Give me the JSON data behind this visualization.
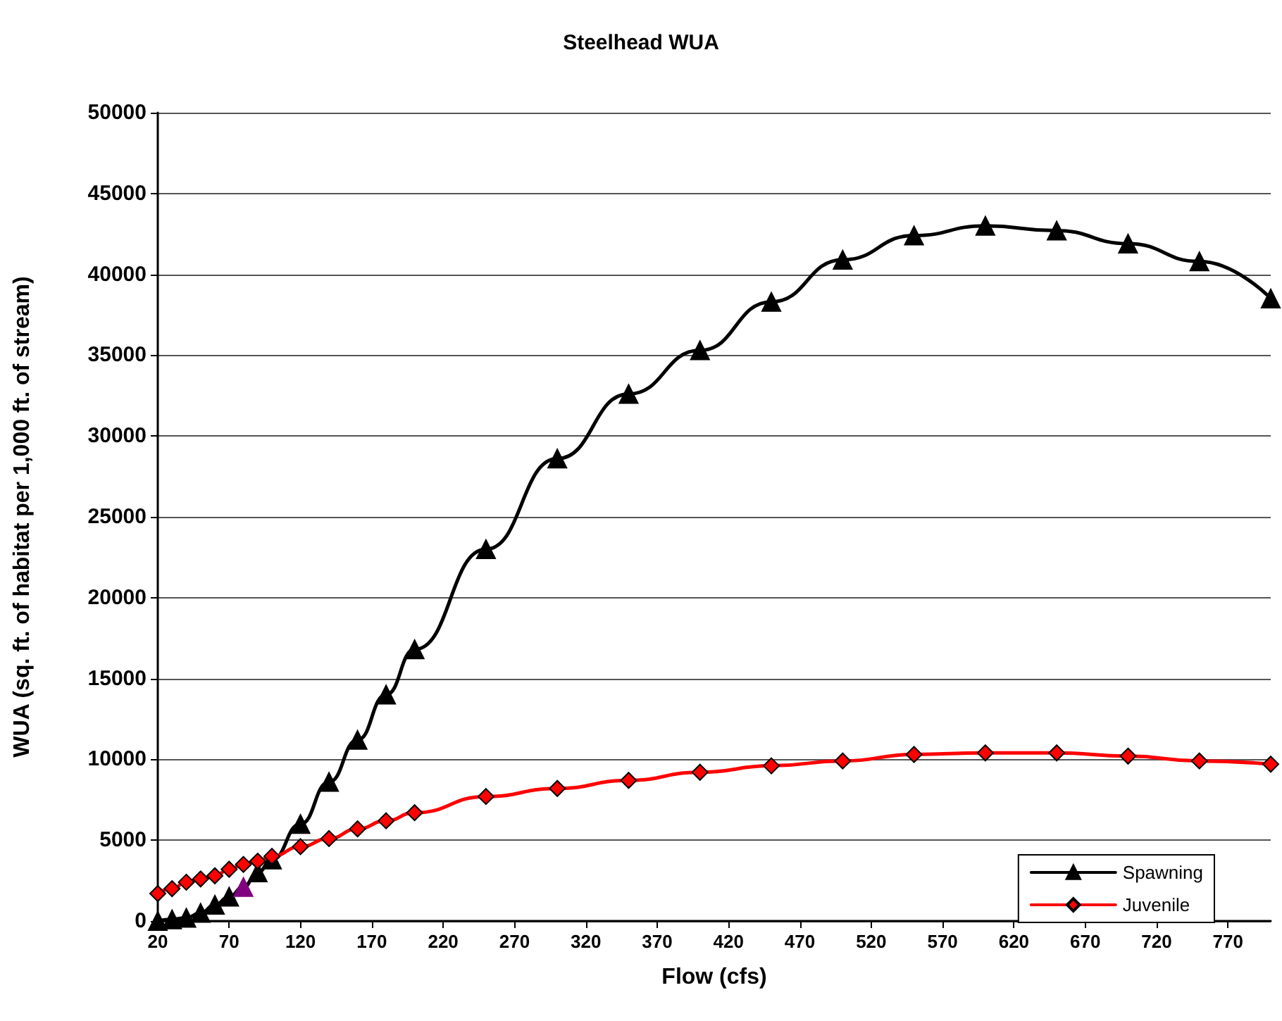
{
  "chart_data": {
    "type": "line",
    "title": "Steelhead WUA",
    "xlabel": "Flow (cfs)",
    "ylabel": "WUA (sq. ft. of habitat per 1,000 ft. of stream)",
    "x": [
      20,
      30,
      40,
      50,
      60,
      70,
      80,
      90,
      100,
      120,
      140,
      160,
      180,
      200,
      250,
      300,
      350,
      400,
      450,
      500,
      550,
      600,
      650,
      700,
      750,
      800
    ],
    "series": [
      {
        "name": "Spawning",
        "color": "#000000",
        "marker": "triangle",
        "colors": [
          "#000000",
          "#000000",
          "#000000",
          "#000000",
          "#000000",
          "#000000",
          "#800080",
          "#000000",
          "#000000",
          "#000000",
          "#000000",
          "#000000",
          "#000000",
          "#000000",
          "#000000",
          "#000000",
          "#000000",
          "#000000",
          "#000000",
          "#000000",
          "#000000",
          "#000000",
          "#000000",
          "#000000",
          "#000000",
          "#000000"
        ],
        "values": [
          0,
          100,
          200,
          500,
          1000,
          1500,
          2100,
          3000,
          3800,
          6000,
          8600,
          11200,
          14000,
          16800,
          23000,
          28600,
          32600,
          35300,
          38300,
          40900,
          42400,
          43000,
          42700,
          41900,
          40800,
          38500
        ]
      },
      {
        "name": "Juvenile",
        "color": "#ff0000",
        "marker": "diamond",
        "values": [
          1700,
          2000,
          2400,
          2600,
          2800,
          3200,
          3500,
          3700,
          4000,
          4600,
          5100,
          5700,
          6200,
          6700,
          7700,
          8200,
          8700,
          9200,
          9600,
          9900,
          10300,
          10400,
          10400,
          10200,
          9900,
          9700
        ]
      }
    ],
    "xlim": [
      20,
      800
    ],
    "xticks": [
      20,
      70,
      120,
      170,
      220,
      270,
      320,
      370,
      420,
      470,
      520,
      570,
      620,
      670,
      720,
      770
    ],
    "ylim": [
      0,
      50000
    ],
    "yticks": [
      0,
      5000,
      10000,
      15000,
      20000,
      25000,
      30000,
      35000,
      40000,
      45000,
      50000
    ],
    "grid": "y",
    "legend": "bottom right"
  }
}
